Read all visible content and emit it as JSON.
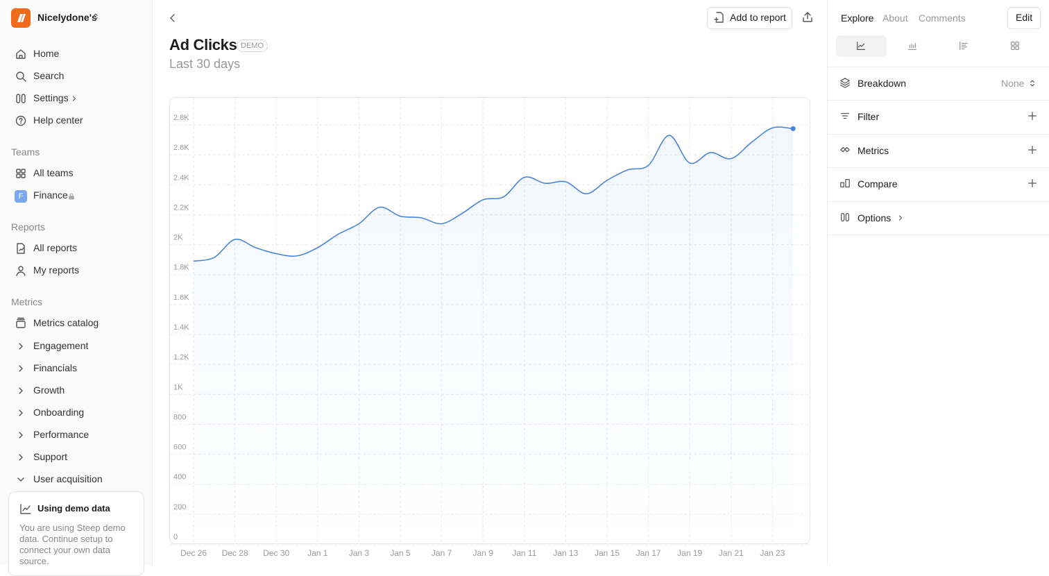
{
  "workspace": "Nicelydone's",
  "nav": {
    "main": [
      "Home",
      "Search",
      "Settings",
      "Help center"
    ],
    "teams": {
      "title": "Teams",
      "items": [
        "All teams",
        {
          "label": "Finance",
          "badge": "F"
        }
      ]
    },
    "reports": {
      "title": "Reports",
      "items": [
        "All reports",
        "My reports"
      ]
    },
    "metrics": {
      "title": "Metrics",
      "items": [
        "Metrics catalog",
        "Engagement",
        "Financials",
        "Growth",
        "Onboarding",
        "Performance",
        "Support",
        "User acquisition"
      ]
    }
  },
  "demo_card": {
    "title": "Using demo data",
    "text": "You are using Steep demo data. Continue setup to connect your own data source."
  },
  "header": {
    "add_to_report": "Add to report"
  },
  "panel": {
    "tabs": [
      "Explore",
      "About",
      "Comments"
    ],
    "edit": "Edit",
    "rows": [
      {
        "label": "Breakdown",
        "value": "None"
      },
      {
        "label": "Filter"
      },
      {
        "label": "Metrics"
      },
      {
        "label": "Compare"
      },
      {
        "label": "Options"
      }
    ]
  },
  "chart_data": {
    "type": "line",
    "title": "Ad Clicks",
    "badge": "DEMO",
    "subtitle": "Last 30 days",
    "categories": [
      "Dec 26",
      null,
      "Dec 28",
      null,
      "Dec 30",
      null,
      "Jan 1",
      null,
      "Jan 3",
      null,
      "Jan 5",
      null,
      "Jan 7",
      null,
      "Jan 9",
      null,
      "Jan 11",
      null,
      "Jan 13",
      null,
      "Jan 15",
      null,
      "Jan 17",
      null,
      "Jan 19",
      null,
      "Jan 21",
      null,
      "Jan 23",
      null
    ],
    "values": [
      1890,
      1915,
      2035,
      1980,
      1940,
      1925,
      1980,
      2070,
      2140,
      2250,
      2190,
      2180,
      2140,
      2210,
      2300,
      2320,
      2450,
      2410,
      2420,
      2340,
      2430,
      2500,
      2530,
      2730,
      2545,
      2615,
      2575,
      2685,
      2780,
      2775
    ],
    "color": "#4a86d8",
    "ylim": [
      0,
      2800
    ],
    "yticks": [
      0,
      200,
      400,
      600,
      800,
      {
        "value": 1000,
        "label": "1K"
      },
      {
        "value": 1200,
        "label": "1.2K"
      },
      {
        "value": 1400,
        "label": "1.4K"
      },
      {
        "value": 1600,
        "label": "1.6K"
      },
      {
        "value": 1800,
        "label": "1.8K"
      },
      {
        "value": 2000,
        "label": "2K"
      },
      {
        "value": 2200,
        "label": "2.2K"
      },
      {
        "value": 2400,
        "label": "2.4K"
      },
      {
        "value": 2600,
        "label": "2.6K"
      },
      {
        "value": 2800,
        "label": "2.8K"
      }
    ],
    "grid": true
  }
}
